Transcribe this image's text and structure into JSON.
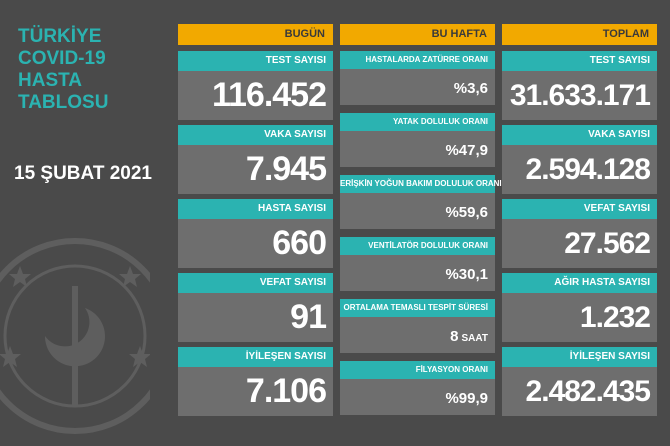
{
  "title_lines": [
    "TÜRKİYE",
    "COVID-19",
    "HASTA",
    "TABLOSU"
  ],
  "date": "15 ŞUBAT 2021",
  "colors": {
    "teal": "#2bb3b1",
    "orange": "#f2a900",
    "background": "#4a4a4a",
    "panel": "#6e6e6e"
  },
  "today": {
    "header": "BUGÜN",
    "cards": [
      {
        "label": "TEST SAYISI",
        "value": "116.452"
      },
      {
        "label": "VAKA SAYISI",
        "value": "7.945"
      },
      {
        "label": "HASTA SAYISI",
        "value": "660"
      },
      {
        "label": "VEFAT SAYISI",
        "value": "91"
      },
      {
        "label": "İYİLEŞEN SAYISI",
        "value": "7.106"
      }
    ]
  },
  "week": {
    "header": "BU HAFTA",
    "cards": [
      {
        "label": "HASTALARDA ZATÜRRE ORANI",
        "value": "%3,6",
        "unit": ""
      },
      {
        "label": "YATAK DOLULUK ORANI",
        "value": "%47,9",
        "unit": ""
      },
      {
        "label": "ERİŞKİN YOĞUN BAKIM DOLULUK ORANI",
        "value": "%59,6",
        "unit": ""
      },
      {
        "label": "VENTİLATÖR DOLULUK ORANI",
        "value": "%30,1",
        "unit": ""
      },
      {
        "label": "ORTALAMA TEMASLI TESPİT SÜRESİ",
        "value": "8",
        "unit": "SAAT"
      },
      {
        "label": "FİLYASYON ORANI",
        "value": "%99,9",
        "unit": ""
      }
    ]
  },
  "total": {
    "header": "TOPLAM",
    "cards": [
      {
        "label": "TEST SAYISI",
        "value": "31.633.171"
      },
      {
        "label": "VAKA SAYISI",
        "value": "2.594.128"
      },
      {
        "label": "VEFAT SAYISI",
        "value": "27.562"
      },
      {
        "label": "AĞIR HASTA SAYISI",
        "value": "1.232"
      },
      {
        "label": "İYİLEŞEN SAYISI",
        "value": "2.482.435"
      }
    ]
  }
}
